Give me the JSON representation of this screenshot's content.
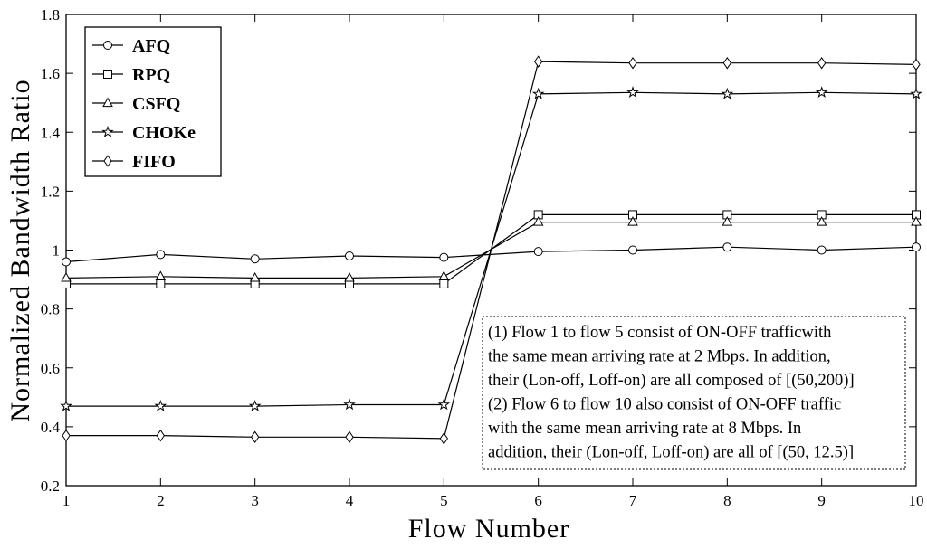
{
  "chart_data": {
    "type": "line",
    "title": "",
    "xlabel": "Flow Number",
    "ylabel": "Normalized Bandwidth Ratio",
    "xlim": [
      1,
      10
    ],
    "ylim": [
      0.2,
      1.8
    ],
    "x": [
      1,
      2,
      3,
      4,
      5,
      6,
      7,
      8,
      9,
      10
    ],
    "xticks": [
      "1",
      "2",
      "3",
      "4",
      "5",
      "6",
      "7",
      "8",
      "9",
      "10"
    ],
    "yticks": [
      "0.2",
      "0.4",
      "0.6",
      "0.8",
      "1",
      "1.2",
      "1.4",
      "1.6",
      "1.8"
    ],
    "grid": false,
    "legend_position": "top-left",
    "series": [
      {
        "name": "AFQ",
        "marker": "circle",
        "values": [
          0.96,
          0.985,
          0.97,
          0.98,
          0.975,
          0.995,
          1.0,
          1.01,
          1.0,
          1.01
        ]
      },
      {
        "name": "RPQ",
        "marker": "square",
        "values": [
          0.885,
          0.885,
          0.885,
          0.885,
          0.885,
          1.12,
          1.12,
          1.12,
          1.12,
          1.12
        ]
      },
      {
        "name": "CSFQ",
        "marker": "triangle",
        "values": [
          0.905,
          0.91,
          0.905,
          0.905,
          0.91,
          1.095,
          1.095,
          1.095,
          1.095,
          1.095
        ]
      },
      {
        "name": "CHOKe",
        "marker": "star",
        "values": [
          0.47,
          0.47,
          0.47,
          0.475,
          0.475,
          1.53,
          1.535,
          1.53,
          1.535,
          1.53
        ]
      },
      {
        "name": "FIFO",
        "marker": "diamond",
        "values": [
          0.37,
          0.37,
          0.365,
          0.365,
          0.36,
          1.64,
          1.635,
          1.635,
          1.635,
          1.63
        ]
      }
    ],
    "annotation": [
      "(1) Flow 1 to flow 5 consist of ON-OFF trafficwith",
      "the same mean arriving rate at 2 Mbps. In addition,",
      "their (Lon-off, Loff-on) are all composed of [(50,200)]",
      "(2) Flow 6 to flow 10 also consist of ON-OFF traffic",
      "with the same mean arriving rate at 8 Mbps. In",
      "addition, their (Lon-off, Loff-on) are all of [(50, 12.5)]"
    ]
  }
}
